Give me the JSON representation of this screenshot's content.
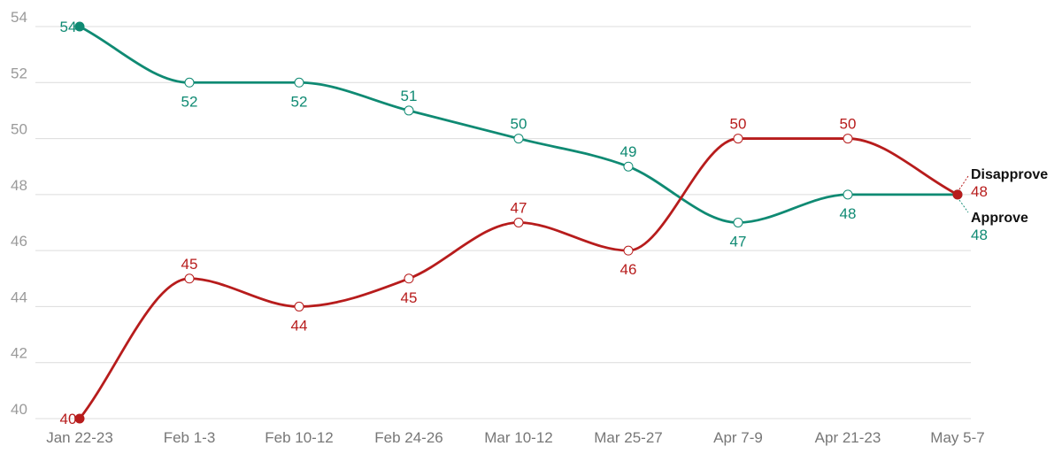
{
  "chart_data": {
    "type": "line",
    "title": "",
    "xlabel": "",
    "ylabel": "",
    "ylim": [
      40,
      54
    ],
    "yticks": [
      40,
      42,
      44,
      46,
      48,
      50,
      52,
      54
    ],
    "grid": true,
    "categories": [
      "Jan 22-23",
      "Feb 1-3",
      "Feb 10-12",
      "Feb 24-26",
      "Mar 10-12",
      "Mar 25-27",
      "Apr 7-9",
      "Apr 21-23",
      "May 5-7"
    ],
    "series": [
      {
        "name": "Approve",
        "color": "#0f8a73",
        "values": [
          54,
          52,
          52,
          51,
          50,
          49,
          47,
          48,
          48
        ],
        "label_positions": [
          "left",
          "below",
          "below",
          "above",
          "above",
          "above",
          "below",
          "below",
          "end"
        ]
      },
      {
        "name": "Disapprove",
        "color": "#b71c1c",
        "values": [
          40,
          45,
          44,
          45,
          47,
          46,
          50,
          50,
          48
        ],
        "label_positions": [
          "left",
          "above",
          "below",
          "below",
          "above",
          "below",
          "above",
          "above",
          "end"
        ]
      }
    ],
    "end_labels": {
      "Disapprove": {
        "name": "Disapprove",
        "value": "48"
      },
      "Approve": {
        "name": "Approve",
        "value": "48"
      }
    }
  }
}
